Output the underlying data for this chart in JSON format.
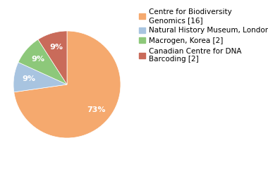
{
  "slices": [
    16,
    2,
    2,
    2
  ],
  "labels": [
    "Centre for Biodiversity\nGenomics [16]",
    "Natural History Museum, London [2]",
    "Macrogen, Korea [2]",
    "Canadian Centre for DNA\nBarcoding [2]"
  ],
  "colors": [
    "#F5A96E",
    "#A8C4E0",
    "#8DC87A",
    "#C96B5A"
  ],
  "startangle": 90,
  "background_color": "#ffffff",
  "text_color": "#ffffff",
  "pct_fontsize": 8,
  "legend_fontsize": 7.5,
  "pctdistance": 0.72
}
